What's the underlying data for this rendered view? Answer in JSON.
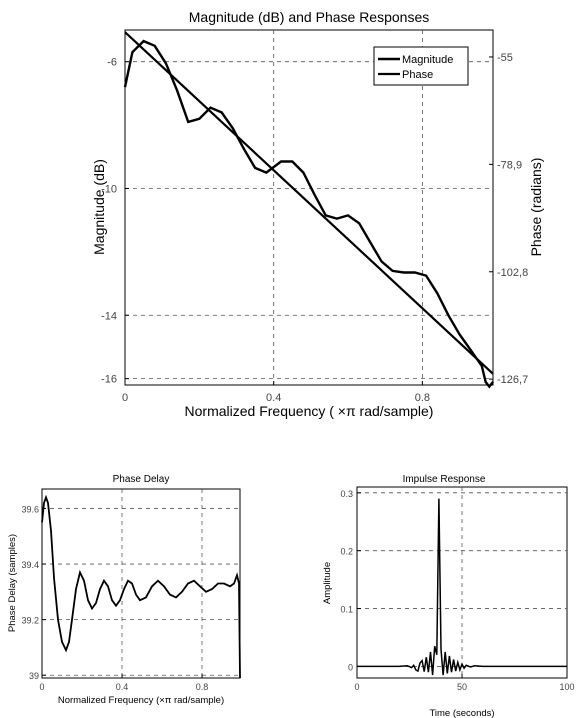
{
  "chart_data": [
    {
      "type": "line",
      "title": "Magnitude (dB) and Phase Responses",
      "xlabel": "Normalized Frequency ( ×π rad/sample)",
      "ylabel": "Magnitude (dB)",
      "y2label": "Phase (radians)",
      "xlim": [
        0,
        0.99
      ],
      "ylim": [
        -16.2,
        -5.0
      ],
      "y2lim": [
        -128,
        -49
      ],
      "x_ticks": [
        0,
        0.4,
        0.8
      ],
      "x_tick_labels": [
        "0",
        "0.4",
        "0.8"
      ],
      "y_ticks": [
        -6,
        -10,
        -14,
        -16
      ],
      "y_tick_labels": [
        "-6",
        "-10",
        "-14",
        "-16"
      ],
      "y2_ticks": [
        -55,
        -78.9,
        -102.8,
        -126.7
      ],
      "y2_tick_labels": [
        "-55",
        "-78,9",
        "-102,8",
        "-126,7"
      ],
      "grid": true,
      "legend": "top-right",
      "series": [
        {
          "name": "Magnitude",
          "color": "#000000",
          "x": [
            0,
            0.02,
            0.05,
            0.08,
            0.11,
            0.14,
            0.17,
            0.2,
            0.23,
            0.26,
            0.29,
            0.32,
            0.35,
            0.38,
            0.42,
            0.45,
            0.48,
            0.51,
            0.54,
            0.57,
            0.6,
            0.63,
            0.66,
            0.69,
            0.72,
            0.75,
            0.78,
            0.81,
            0.84,
            0.87,
            0.9,
            0.93,
            0.96,
            0.97,
            0.98,
            0.99
          ],
          "values": [
            -6.8,
            -5.7,
            -5.35,
            -5.5,
            -6.05,
            -6.9,
            -7.9,
            -7.8,
            -7.45,
            -7.6,
            -8.1,
            -8.75,
            -9.35,
            -9.5,
            -9.15,
            -9.15,
            -9.5,
            -10.2,
            -10.85,
            -10.95,
            -10.85,
            -11.1,
            -11.7,
            -12.3,
            -12.6,
            -12.65,
            -12.65,
            -12.75,
            -13.3,
            -14.0,
            -14.6,
            -15.1,
            -15.6,
            -16.1,
            -16.25,
            -16.1
          ]
        },
        {
          "name": "Phase",
          "color": "#000000",
          "axis": "right",
          "x": [
            0,
            0.99
          ],
          "values": [
            -49.5,
            -125.5
          ]
        }
      ]
    },
    {
      "type": "line",
      "title": "Phase Delay",
      "xlabel": "Normalized Frequency (×π rad/sample)",
      "ylabel": "Phase Delay (samples)",
      "xlim": [
        0,
        0.99
      ],
      "ylim": [
        38.99,
        39.67
      ],
      "x_ticks": [
        0,
        0.4,
        0.8
      ],
      "x_tick_labels": [
        "0",
        "0.4",
        "0.8"
      ],
      "y_ticks": [
        39,
        39.2,
        39.4,
        39.6
      ],
      "y_tick_labels": [
        "39",
        "39.2",
        "39.4",
        "39.6"
      ],
      "grid": true,
      "series": [
        {
          "color": "#000000",
          "x": [
            0,
            0.01,
            0.02,
            0.03,
            0.045,
            0.06,
            0.08,
            0.1,
            0.12,
            0.135,
            0.15,
            0.17,
            0.19,
            0.21,
            0.23,
            0.25,
            0.27,
            0.29,
            0.31,
            0.33,
            0.35,
            0.37,
            0.39,
            0.41,
            0.43,
            0.45,
            0.47,
            0.49,
            0.52,
            0.55,
            0.58,
            0.61,
            0.64,
            0.67,
            0.7,
            0.73,
            0.76,
            0.79,
            0.82,
            0.85,
            0.88,
            0.91,
            0.94,
            0.96,
            0.975,
            0.985,
            0.99
          ],
          "values": [
            39.55,
            39.62,
            39.64,
            39.62,
            39.52,
            39.35,
            39.2,
            39.12,
            39.09,
            39.12,
            39.2,
            39.31,
            39.37,
            39.34,
            39.27,
            39.24,
            39.26,
            39.31,
            39.34,
            39.32,
            39.27,
            39.25,
            39.27,
            39.31,
            39.34,
            39.33,
            39.29,
            39.27,
            39.28,
            39.32,
            39.34,
            39.32,
            39.29,
            39.28,
            39.3,
            39.33,
            39.34,
            39.32,
            39.3,
            39.31,
            39.33,
            39.33,
            39.32,
            39.33,
            39.36,
            39.33,
            38.99
          ]
        }
      ]
    },
    {
      "type": "line",
      "title": "Impulse Response",
      "xlabel": "Time (seconds)",
      "ylabel": "Amplitude",
      "xlim": [
        0,
        100
      ],
      "ylim": [
        -0.02,
        0.31
      ],
      "x_ticks": [
        0,
        50,
        100
      ],
      "x_tick_labels": [
        "0",
        "50",
        "100"
      ],
      "y_ticks": [
        0,
        0.1,
        0.2,
        0.3
      ],
      "y_tick_labels": [
        "0",
        "0.1",
        "0.2",
        "0.3"
      ],
      "grid": true,
      "series": [
        {
          "color": "#000000",
          "x": [
            0,
            20,
            24,
            26,
            27,
            28,
            29,
            30,
            31,
            32,
            33,
            34,
            35,
            36,
            37,
            38,
            39,
            40,
            41,
            42,
            43,
            44,
            45,
            46,
            47,
            48,
            49,
            50,
            51,
            52,
            54,
            56,
            60,
            70,
            100
          ],
          "values": [
            0,
            0,
            0.001,
            -0.002,
            0.002,
            -0.006,
            -0.008,
            0.006,
            0.01,
            -0.009,
            0.016,
            -0.01,
            0.025,
            -0.015,
            0.035,
            0.02,
            0.29,
            0.03,
            -0.015,
            0.025,
            -0.012,
            0.018,
            -0.01,
            0.012,
            -0.008,
            0.007,
            -0.006,
            0.004,
            -0.003,
            0.002,
            -0.001,
            0.001,
            0,
            0,
            0
          ]
        }
      ]
    }
  ]
}
